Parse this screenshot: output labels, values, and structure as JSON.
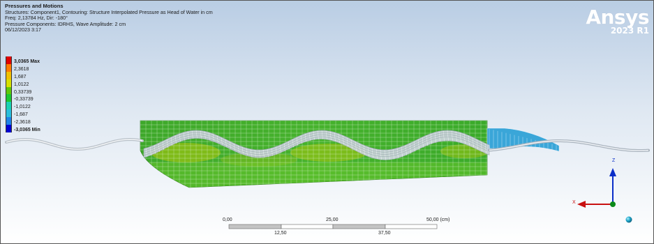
{
  "header": {
    "title": "Pressures and Motions",
    "line1": "Structures: Component1, Contouring: Structure Interpolated Pressure as Head of Water in cm",
    "line2": "Freq: 2,13784 Hz, Dir: -180°",
    "line3": "Pressure Components: IDRHS, Wave Amplitude: 2 cm",
    "line4": "06/12/2023 3:17"
  },
  "brand": {
    "name": "Ansys",
    "version": "2023 R1"
  },
  "legend": {
    "entries": [
      {
        "label": "3,0365 Max",
        "color": "#e00000",
        "bold": true
      },
      {
        "label": "2,3618",
        "color": "#ff7a00"
      },
      {
        "label": "1,687",
        "color": "#f0c000"
      },
      {
        "label": "1,0122",
        "color": "#d6e000"
      },
      {
        "label": "0,33739",
        "color": "#5ec80a"
      },
      {
        "label": "-0,33739",
        "color": "#1cc832"
      },
      {
        "label": "-1,0122",
        "color": "#1ad2b4"
      },
      {
        "label": "-1,687",
        "color": "#28bedc"
      },
      {
        "label": "-2,3618",
        "color": "#1e82e6"
      },
      {
        "label": "-3,0365 Min",
        "color": "#0000d2",
        "bold": true
      }
    ]
  },
  "scale_bar": {
    "top_labels": [
      "0,00",
      "25,00",
      "50,00 (cm)"
    ],
    "bottom_labels": [
      "12,50",
      "37,50"
    ]
  },
  "triad": {
    "z": "Z",
    "x": "X"
  },
  "colors": {
    "hull_green": "#3cae28",
    "mesh_line": "#d8f0d0",
    "wave_surface": "#c8ced6",
    "water_blue": "#3aa6d8",
    "triad_blue": "#0a2ec8",
    "triad_red": "#c81010",
    "triad_green": "#0a8a1a",
    "ball_cyan": "#1ea6c8"
  }
}
